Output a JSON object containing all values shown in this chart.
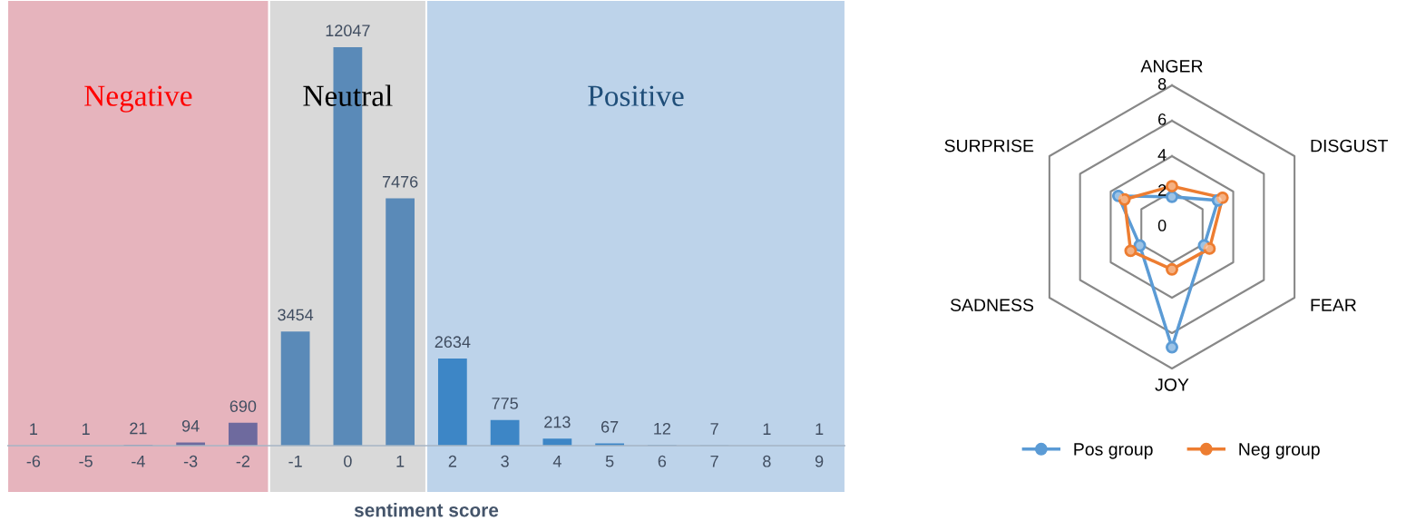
{
  "chart_data": [
    {
      "type": "bar",
      "xlabel": "sentiment score",
      "x": [
        -6,
        -5,
        -4,
        -3,
        -2,
        -1,
        0,
        1,
        2,
        3,
        4,
        5,
        6,
        7,
        8,
        9
      ],
      "xlim": [
        -6.5,
        9.5
      ],
      "xticks": [
        -6,
        -5,
        -4,
        -3,
        -2,
        -1,
        0,
        1,
        2,
        3,
        4,
        5,
        6,
        7,
        8,
        9
      ],
      "values": [
        1,
        1,
        21,
        94,
        690,
        3454,
        12047,
        7476,
        2634,
        775,
        213,
        67,
        12,
        7,
        1,
        1
      ],
      "colors": [
        "#6e6a9e",
        "#6e6a9e",
        "#6e6a9e",
        "#6e6a9e",
        "#6e6a9e",
        "#5a8ab8",
        "#5a8ab8",
        "#5a8ab8",
        "#3d86c6",
        "#3d86c6",
        "#3d86c6",
        "#3d86c6",
        "#3d86c6",
        "#3d86c6",
        "#3d86c6",
        "#3d86c6"
      ],
      "data_labels": true,
      "tick_labels": "x",
      "bands": [
        {
          "axis": "x",
          "from": -6.5,
          "to": -1.5,
          "label": "Negative",
          "color": "#e6b4bd"
        },
        {
          "axis": "x",
          "from": -1.5,
          "to": 1.5,
          "label": "Neutral",
          "color": "#d9d9d9"
        },
        {
          "axis": "x",
          "from": 1.5,
          "to": 9.5,
          "label": "Positive",
          "color": "#bdd3ea"
        }
      ]
    },
    {
      "type": "radar",
      "categories": [
        "ANGER",
        "DISGUST",
        "FEAR",
        "JOY",
        "SADNESS",
        "SURPRISE"
      ],
      "ylim": [
        0,
        8
      ],
      "yticks": [
        0,
        2,
        4,
        6,
        8
      ],
      "grid": true,
      "legend": "bottom",
      "marker": "circle",
      "series": [
        {
          "name": "Pos group",
          "color": "#5b9bd5",
          "values": [
            1.7,
            3.0,
            2.1,
            6.8,
            2.1,
            3.5
          ]
        },
        {
          "name": "Neg group",
          "color": "#ed7d31",
          "values": [
            2.3,
            3.3,
            2.45,
            2.4,
            2.7,
            3.1
          ]
        }
      ]
    }
  ]
}
